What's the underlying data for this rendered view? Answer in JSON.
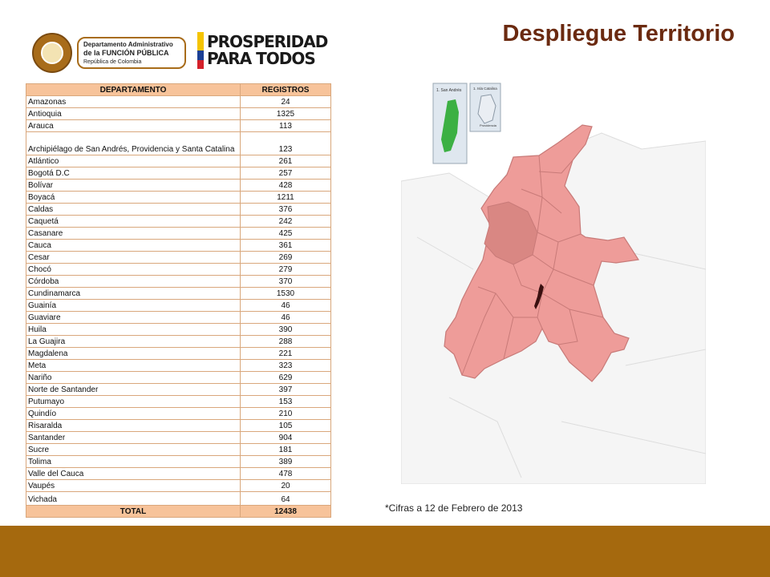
{
  "header": {
    "title": "Despliegue Territorio",
    "logo_funcion": {
      "line1": "Departamento Administrativo",
      "line2": "de la FUNCIÓN PÚBLICA",
      "line3": "República de Colombia"
    },
    "logo_prosperidad": {
      "line1": "PROSPERIDAD",
      "line2": "PARA TODOS"
    }
  },
  "table": {
    "headers": {
      "department": "DEPARTAMENTO",
      "registros": "REGISTROS"
    },
    "rows": [
      {
        "name": "Amazonas",
        "value": "24"
      },
      {
        "name": "Antioquia",
        "value": "1325"
      },
      {
        "name": "Arauca",
        "value": "113"
      },
      {
        "name": "Archipiélago de San Andrés, Providencia y Santa Catalina",
        "value": "123"
      },
      {
        "name": "Atlántico",
        "value": "261"
      },
      {
        "name": "Bogotá D.C",
        "value": "257"
      },
      {
        "name": "Bolívar",
        "value": "428"
      },
      {
        "name": "Boyacá",
        "value": "1211"
      },
      {
        "name": "Caldas",
        "value": "376"
      },
      {
        "name": "Caquetá",
        "value": "242"
      },
      {
        "name": "Casanare",
        "value": "425"
      },
      {
        "name": "Cauca",
        "value": "361"
      },
      {
        "name": "Cesar",
        "value": "269"
      },
      {
        "name": "Chocó",
        "value": "279"
      },
      {
        "name": "Córdoba",
        "value": "370"
      },
      {
        "name": "Cundinamarca",
        "value": "1530"
      },
      {
        "name": "Guainía",
        "value": "46"
      },
      {
        "name": "Guaviare",
        "value": "46"
      },
      {
        "name": "Huila",
        "value": "390"
      },
      {
        "name": "La Guajira",
        "value": "288"
      },
      {
        "name": "Magdalena",
        "value": "221"
      },
      {
        "name": "Meta",
        "value": "323"
      },
      {
        "name": "Nariño",
        "value": "629"
      },
      {
        "name": "Norte de Santander",
        "value": "397"
      },
      {
        "name": "Putumayo",
        "value": "153"
      },
      {
        "name": "Quindío",
        "value": "210"
      },
      {
        "name": "Risaralda",
        "value": "105"
      },
      {
        "name": "Santander",
        "value": "904"
      },
      {
        "name": "Sucre",
        "value": "181"
      },
      {
        "name": "Tolima",
        "value": "389"
      },
      {
        "name": "Valle del Cauca",
        "value": "478"
      },
      {
        "name": "Vaupés",
        "value": "20"
      },
      {
        "name": "Vichada",
        "value": "64"
      }
    ],
    "total": {
      "label": "TOTAL",
      "value": "12438"
    }
  },
  "map": {
    "inset_left_label": "1. San Andrés",
    "inset_right_label": "1. Isla Catalina",
    "inset_right_sublabel": "Providencia",
    "colors": {
      "departments": "#ee9c99",
      "department_borders": "#c87a78",
      "antioquia": "#d98783",
      "bogota": "#3a1010",
      "san_andres": "#3cb043",
      "neighbors": "#f5f5f5"
    }
  },
  "footnote": "*Cifras  a 12 de Febrero de 2013",
  "colors": {
    "title": "#6b2a10",
    "table_header": "#f7c39a",
    "bottom_bar": "#a5690e"
  }
}
